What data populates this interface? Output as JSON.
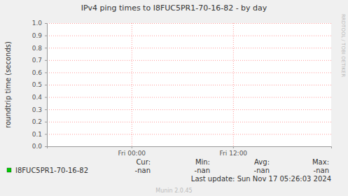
{
  "chart_data": {
    "type": "line",
    "title": "IPv4 ping times to I8FUC5PR1-70-16-82 - by day",
    "y_label": "roundtrip time (seconds)",
    "side_label": "RRDTOOL / TOBI OETIKER",
    "xlim": [
      -10,
      23.6
    ],
    "xticks": [
      {
        "value": 0,
        "label": "Fri 00:00"
      },
      {
        "value": 12,
        "label": "Fri 12:00"
      }
    ],
    "ylim": [
      0,
      1
    ],
    "yticks": [
      {
        "value": 0,
        "label": "0.0"
      },
      0.1,
      0.2,
      0.3,
      0.4,
      0.5,
      0.6,
      0.7,
      0.8,
      0.9,
      {
        "value": 1,
        "label": "1.0"
      }
    ],
    "grid": true,
    "x": [],
    "series": [
      {
        "name": "I8FUC5PR1-70-16-82",
        "color": "#00cc00",
        "values": [],
        "stats": [
          "-nan",
          "-nan",
          "-nan",
          "-nan"
        ]
      }
    ],
    "stats_headers": [
      "Cur:",
      "Min:",
      "Avg:",
      "Max:"
    ],
    "last_update": "Last update: Sun Nov 17 05:26:03 2024",
    "footer": "Munin 2.0.45"
  }
}
